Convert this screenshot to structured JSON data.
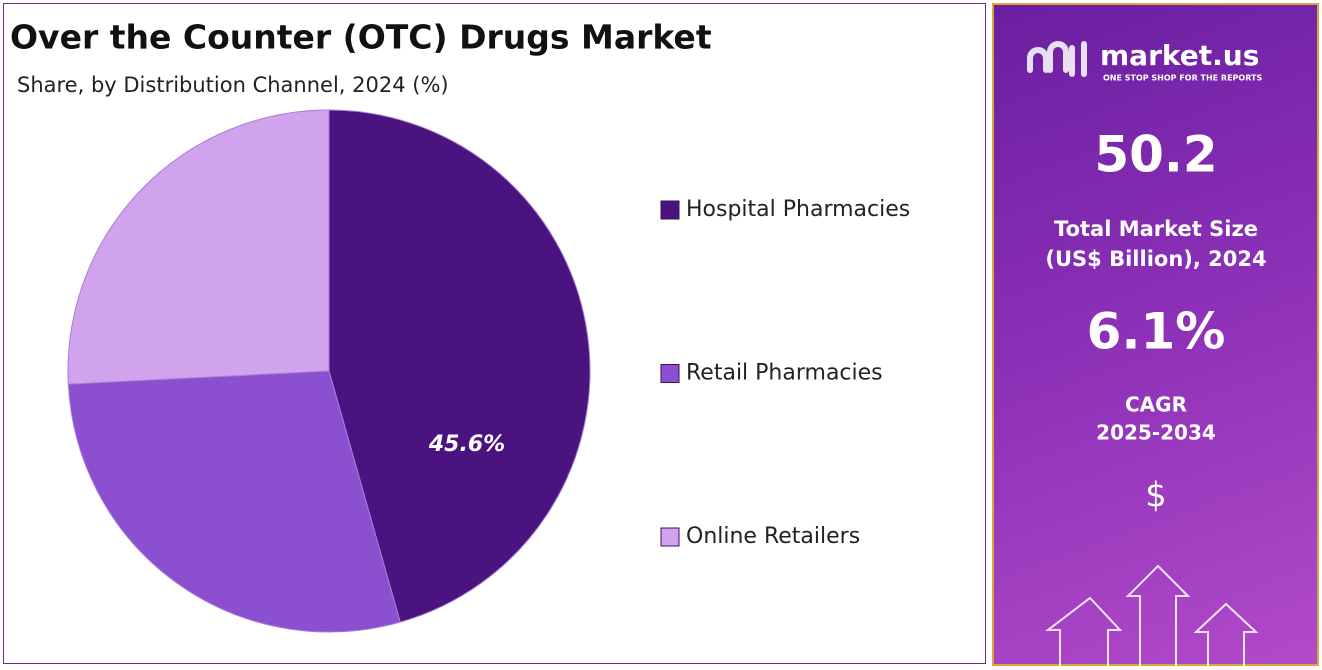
{
  "chart_data": {
    "type": "pie",
    "title": "Over the Counter (OTC) Drugs Market",
    "subtitle": "Share, by Distribution Channel, 2024 (%)",
    "categories": [
      "Hospital Pharmacies",
      "Retail Pharmacies",
      "Online Retailers"
    ],
    "values": [
      45.6,
      28.6,
      25.8
    ],
    "value_labels": [
      "45.6%",
      null,
      null
    ],
    "colors": [
      "#4b1380",
      "#8b4fd0",
      "#d1a3ec"
    ],
    "legend": "right"
  },
  "sidebar": {
    "brand": "market.us",
    "tagline": "ONE STOP SHOP FOR THE REPORTS",
    "market_size": "50.2",
    "market_size_label": [
      "Total Market Size",
      "(US$ Billion), 2024"
    ],
    "cagr": "6.1%",
    "cagr_label": [
      "CAGR",
      "2025-2034"
    ],
    "currency_icon": "$"
  }
}
